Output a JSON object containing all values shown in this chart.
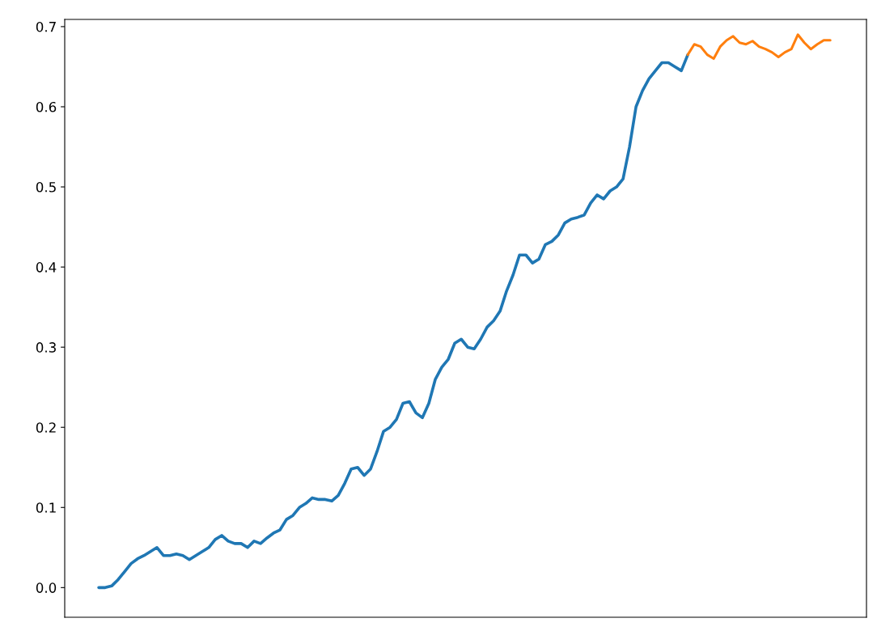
{
  "chart_data": {
    "type": "line",
    "categories": [
      null,
      null,
      null,
      null,
      null,
      null,
      null,
      null,
      null,
      null,
      null,
      null,
      null,
      null,
      null,
      null,
      null,
      null,
      null,
      null,
      null,
      null,
      null,
      null,
      null,
      null,
      null,
      null,
      null,
      null,
      null,
      null,
      null,
      null,
      null,
      null,
      null,
      null,
      null,
      null,
      null,
      null,
      null,
      null,
      null,
      null,
      null,
      null,
      null,
      null,
      null,
      null,
      null,
      null,
      null,
      null,
      null,
      null,
      null,
      null,
      null,
      null,
      null,
      null,
      null,
      null,
      null,
      null,
      null,
      null,
      null,
      null,
      null,
      null,
      null,
      null,
      null,
      null,
      null,
      null,
      null,
      null,
      null,
      null,
      null,
      null,
      null,
      null,
      null,
      null,
      null,
      null,
      null,
      null,
      null,
      null,
      null,
      null,
      null,
      null,
      null,
      null,
      null,
      null,
      null,
      null,
      null,
      null,
      null,
      null,
      null,
      null,
      null,
      null
    ],
    "series": [
      {
        "color": "#1f77b4",
        "values": [
          0.0,
          0.0,
          0.002,
          0.01,
          0.02,
          0.03,
          0.036,
          0.04,
          0.045,
          0.05,
          0.04,
          0.04,
          0.042,
          0.04,
          0.035,
          0.04,
          0.045,
          0.05,
          0.06,
          0.065,
          0.058,
          0.055,
          0.055,
          0.05,
          0.058,
          0.055,
          0.062,
          0.068,
          0.072,
          0.085,
          0.09,
          0.1,
          0.105,
          0.112,
          0.11,
          0.11,
          0.108,
          0.115,
          0.13,
          0.148,
          0.15,
          0.14,
          0.148,
          0.17,
          0.195,
          0.2,
          0.21,
          0.23,
          0.232,
          0.218,
          0.212,
          0.23,
          0.26,
          0.275,
          0.285,
          0.305,
          0.31,
          0.3,
          0.298,
          0.31,
          0.325,
          0.333,
          0.345,
          0.37,
          0.39,
          0.415,
          0.415,
          0.405,
          0.41,
          0.428,
          0.432,
          0.44,
          0.455,
          0.46,
          0.462,
          0.465,
          0.48,
          0.49,
          0.485,
          0.495,
          0.5,
          0.51,
          0.55,
          0.6,
          0.62,
          0.635,
          0.645,
          0.655,
          0.655,
          0.65,
          0.645,
          0.665,
          null,
          null,
          null,
          null,
          null,
          null,
          null,
          null,
          null,
          null,
          null,
          null,
          null,
          null,
          null,
          null,
          null,
          null,
          null,
          null,
          null,
          null
        ]
      },
      {
        "color": "#ff7f0e",
        "values": [
          null,
          null,
          null,
          null,
          null,
          null,
          null,
          null,
          null,
          null,
          null,
          null,
          null,
          null,
          null,
          null,
          null,
          null,
          null,
          null,
          null,
          null,
          null,
          null,
          null,
          null,
          null,
          null,
          null,
          null,
          null,
          null,
          null,
          null,
          null,
          null,
          null,
          null,
          null,
          null,
          null,
          null,
          null,
          null,
          null,
          null,
          null,
          null,
          null,
          null,
          null,
          null,
          null,
          null,
          null,
          null,
          null,
          null,
          null,
          null,
          null,
          null,
          null,
          null,
          null,
          null,
          null,
          null,
          null,
          null,
          null,
          null,
          null,
          null,
          null,
          null,
          null,
          null,
          null,
          null,
          null,
          null,
          null,
          null,
          null,
          null,
          null,
          null,
          null,
          null,
          null,
          0.665,
          0.678,
          0.675,
          0.665,
          0.66,
          0.675,
          0.683,
          0.688,
          0.68,
          0.678,
          0.682,
          0.675,
          0.672,
          0.668,
          0.662,
          0.668,
          0.672,
          0.69,
          0.68,
          0.672,
          0.678,
          0.683,
          0.683
        ]
      }
    ],
    "ylim": [
      -0.037,
      0.709
    ],
    "yticks": [
      {
        "value": 0,
        "label": "0.0"
      },
      0.1,
      0.2,
      0.3,
      0.4,
      0.5,
      0.6,
      0.7
    ],
    "grid": false
  }
}
